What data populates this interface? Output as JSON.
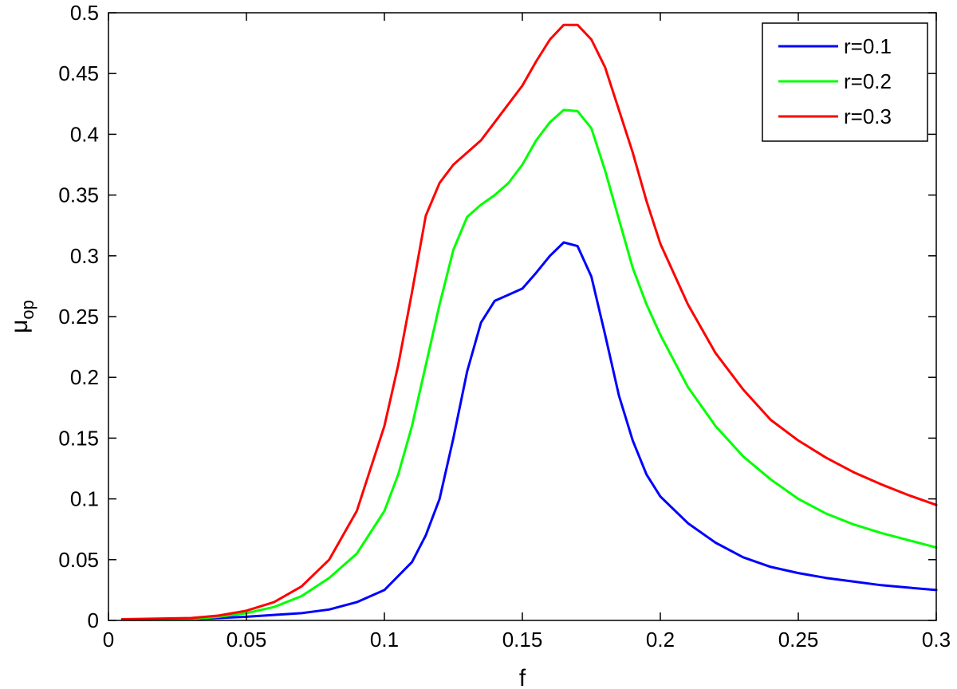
{
  "chart_data": {
    "type": "line",
    "title": "",
    "xlabel": "f",
    "ylabel_main": "μ",
    "ylabel_sub": "op",
    "xlim": [
      0,
      0.3
    ],
    "ylim": [
      0,
      0.5
    ],
    "x_ticks": [
      0,
      0.05,
      0.1,
      0.15,
      0.2,
      0.25,
      0.3
    ],
    "x_tick_labels": [
      "0",
      "0.05",
      "0.1",
      "0.15",
      "0.2",
      "0.25",
      "0.3"
    ],
    "y_ticks": [
      0,
      0.05,
      0.1,
      0.15,
      0.2,
      0.25,
      0.3,
      0.35,
      0.4,
      0.45,
      0.5
    ],
    "y_tick_labels": [
      "0",
      "0.05",
      "0.1",
      "0.15",
      "0.2",
      "0.25",
      "0.3",
      "0.35",
      "0.4",
      "0.45",
      "0.5"
    ],
    "grid": false,
    "legend_position": "top-right",
    "series": [
      {
        "name": "r=0.1",
        "color": "#0000ff",
        "x": [
          0.005,
          0.03,
          0.05,
          0.07,
          0.08,
          0.09,
          0.1,
          0.11,
          0.115,
          0.12,
          0.125,
          0.13,
          0.135,
          0.14,
          0.145,
          0.15,
          0.155,
          0.16,
          0.165,
          0.17,
          0.175,
          0.18,
          0.185,
          0.19,
          0.195,
          0.2,
          0.21,
          0.22,
          0.23,
          0.24,
          0.25,
          0.26,
          0.27,
          0.28,
          0.29,
          0.3
        ],
        "y": [
          0.001,
          0.001,
          0.003,
          0.006,
          0.009,
          0.015,
          0.025,
          0.048,
          0.07,
          0.1,
          0.15,
          0.205,
          0.245,
          0.263,
          0.268,
          0.273,
          0.286,
          0.3,
          0.311,
          0.308,
          0.283,
          0.235,
          0.185,
          0.148,
          0.12,
          0.102,
          0.08,
          0.064,
          0.052,
          0.044,
          0.039,
          0.035,
          0.032,
          0.029,
          0.027,
          0.025
        ]
      },
      {
        "name": "r=0.2",
        "color": "#00ff00",
        "x": [
          0.005,
          0.03,
          0.04,
          0.05,
          0.06,
          0.07,
          0.08,
          0.09,
          0.1,
          0.105,
          0.11,
          0.115,
          0.12,
          0.125,
          0.13,
          0.135,
          0.14,
          0.145,
          0.15,
          0.155,
          0.16,
          0.165,
          0.17,
          0.175,
          0.18,
          0.185,
          0.19,
          0.195,
          0.2,
          0.21,
          0.22,
          0.23,
          0.24,
          0.25,
          0.26,
          0.27,
          0.28,
          0.29,
          0.3
        ],
        "y": [
          0.001,
          0.001,
          0.003,
          0.006,
          0.011,
          0.02,
          0.035,
          0.055,
          0.09,
          0.12,
          0.16,
          0.21,
          0.26,
          0.305,
          0.332,
          0.342,
          0.35,
          0.36,
          0.375,
          0.395,
          0.41,
          0.42,
          0.419,
          0.405,
          0.37,
          0.33,
          0.29,
          0.26,
          0.235,
          0.192,
          0.16,
          0.135,
          0.116,
          0.1,
          0.088,
          0.079,
          0.072,
          0.066,
          0.06
        ]
      },
      {
        "name": "r=0.3",
        "color": "#ff0000",
        "x": [
          0.005,
          0.03,
          0.04,
          0.05,
          0.06,
          0.07,
          0.08,
          0.09,
          0.1,
          0.105,
          0.11,
          0.115,
          0.12,
          0.125,
          0.13,
          0.135,
          0.14,
          0.145,
          0.15,
          0.155,
          0.16,
          0.165,
          0.17,
          0.175,
          0.18,
          0.185,
          0.19,
          0.195,
          0.2,
          0.21,
          0.22,
          0.23,
          0.24,
          0.25,
          0.26,
          0.27,
          0.28,
          0.29,
          0.3
        ],
        "y": [
          0.001,
          0.002,
          0.004,
          0.008,
          0.015,
          0.028,
          0.05,
          0.09,
          0.16,
          0.21,
          0.27,
          0.333,
          0.36,
          0.375,
          0.385,
          0.395,
          0.41,
          0.425,
          0.44,
          0.46,
          0.478,
          0.49,
          0.49,
          0.478,
          0.455,
          0.42,
          0.385,
          0.345,
          0.31,
          0.26,
          0.22,
          0.19,
          0.165,
          0.148,
          0.134,
          0.122,
          0.112,
          0.103,
          0.095
        ]
      }
    ]
  }
}
